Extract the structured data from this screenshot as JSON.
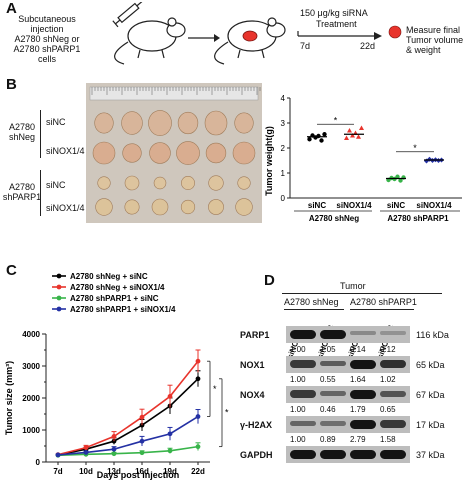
{
  "panel_a": {
    "letter": "A",
    "injection_text": [
      "Subcutaneous",
      "injection",
      "A2780 shNeg or",
      "A2780 shPARP1",
      "cells"
    ],
    "dose_text": "150 μg/kg siRNA",
    "treatment_text": "Treatment",
    "day_start": "7d",
    "day_end": "22d",
    "measure_text": [
      "Measure final",
      "Tumor volume",
      "& weight"
    ],
    "tumor_color": "#e8342c"
  },
  "panel_b": {
    "letter": "B",
    "group1": [
      "A2780",
      "shNeg"
    ],
    "group2": [
      "A2780",
      "shPARP1"
    ],
    "row_labels": [
      "siNC",
      "siNOX1/4",
      "siNC",
      "siNOX1/4"
    ],
    "weight_chart": {
      "type": "scatter",
      "ylabel": "Tumor weight(g)",
      "ylim": [
        0,
        4
      ],
      "yticks": [
        "0",
        "1",
        "2",
        "3",
        "4"
      ],
      "categories": [
        "siNC",
        "siNOX1/4",
        "siNC",
        "siNOX1/4"
      ],
      "group_labels": [
        "A2780 shNeg",
        "A2780 shPARP1"
      ],
      "colors": [
        "#000000",
        "#e8342c",
        "#38b44a",
        "#2431a4"
      ],
      "means": [
        2.45,
        2.55,
        0.78,
        1.52
      ],
      "points": [
        [
          2.35,
          2.5,
          2.42,
          2.48,
          2.3,
          2.55
        ],
        [
          2.4,
          2.7,
          2.5,
          2.6,
          2.45,
          2.8
        ],
        [
          0.72,
          0.8,
          0.76,
          0.85,
          0.7,
          0.82
        ],
        [
          1.48,
          1.55,
          1.5,
          1.53,
          1.5,
          1.52
        ]
      ],
      "sig": [
        "*",
        "*"
      ]
    }
  },
  "panel_c": {
    "letter": "C",
    "chart_data": {
      "type": "line",
      "x": [
        "7d",
        "10d",
        "13d",
        "16d",
        "19d",
        "22d"
      ],
      "xlabel": "Days post injection",
      "ylabel": "Tumor size (mm³)",
      "ylim": [
        0,
        4000
      ],
      "yticks": [
        "0",
        "1000",
        "2000",
        "3000",
        "4000"
      ],
      "yticks_minor": [
        "500",
        "1500",
        "2500",
        "3500"
      ],
      "series": [
        {
          "name": "A2780 shNeg + siNC",
          "color": "#000000",
          "values": [
            220,
            400,
            650,
            1150,
            1750,
            2600
          ],
          "err": [
            20,
            60,
            100,
            180,
            250,
            250
          ]
        },
        {
          "name": "A2780 shNeg + siNOX1/4",
          "color": "#e8342c",
          "values": [
            230,
            450,
            800,
            1400,
            2050,
            3150
          ],
          "err": [
            20,
            70,
            150,
            250,
            350,
            350
          ]
        },
        {
          "name": "A2780 shPARP1 + siNC",
          "color": "#38b44a",
          "values": [
            210,
            240,
            260,
            290,
            350,
            480
          ],
          "err": [
            20,
            30,
            40,
            60,
            80,
            120
          ]
        },
        {
          "name": "A2780 shPARP1 + siNOX1/4",
          "color": "#2431a4",
          "values": [
            220,
            300,
            400,
            650,
            880,
            1420
          ],
          "err": [
            20,
            40,
            80,
            150,
            200,
            220
          ]
        }
      ],
      "sig": [
        "*",
        "*"
      ]
    }
  },
  "panel_d": {
    "letter": "D",
    "tumor_label": "Tumor",
    "group1": "A2780 shNeg",
    "group2": "A2780 shPARP1",
    "lanes": [
      "siNC",
      "siNOX1/4",
      "siNC",
      "siNOX1/4"
    ],
    "rows": [
      {
        "name": "PARP1",
        "kda": "116 kDa",
        "values": [
          "1.00",
          "1.05",
          "0.14",
          "0.12"
        ],
        "intensity": [
          1,
          1,
          0.35,
          0.3
        ]
      },
      {
        "name": "NOX1",
        "kda": "65 kDa",
        "values": [
          "1.00",
          "0.55",
          "1.64",
          "1.02"
        ],
        "intensity": [
          0.8,
          0.6,
          1,
          0.85
        ]
      },
      {
        "name": "NOX4",
        "kda": "67 kDa",
        "values": [
          "1.00",
          "0.46",
          "1.79",
          "0.65"
        ],
        "intensity": [
          0.8,
          0.55,
          1,
          0.65
        ]
      },
      {
        "name": "γ-H2AX",
        "kda": "17 kDa",
        "values": [
          "1.00",
          "0.89",
          "2.79",
          "1.58"
        ],
        "intensity": [
          0.55,
          0.5,
          1,
          0.8
        ]
      },
      {
        "name": "GAPDH",
        "kda": "37 kDa",
        "values": [],
        "intensity": [
          1,
          1,
          1,
          1
        ]
      }
    ]
  }
}
